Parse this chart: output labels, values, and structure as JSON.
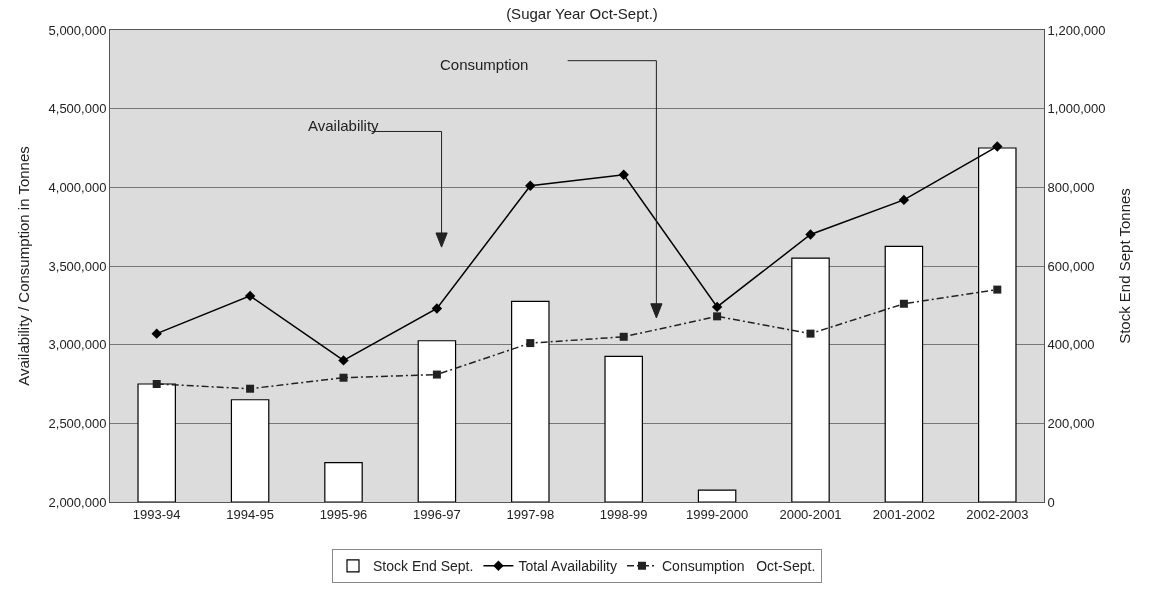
{
  "chart_data": {
    "type": "bar",
    "title": "(Sugar Year Oct-Sept.)",
    "ylabel": "Availability / Consumption in Tonnes",
    "y2label": "Stock End Sept Tonnes",
    "categories": [
      "1993-94",
      "1994-95",
      "1995-96",
      "1996-97",
      "1997-98",
      "1998-99",
      "1999-2000",
      "2000-2001",
      "2001-2002",
      "2002-2003"
    ],
    "series": [
      {
        "name": "Stock End Sept.",
        "axis": "y2",
        "color": "#ffffff",
        "values": [
          300000,
          260000,
          100000,
          410000,
          510000,
          370000,
          30000,
          620000,
          650000,
          900000
        ]
      },
      {
        "name": "Total Availability",
        "type": "line",
        "color": "#000000",
        "marker": "diamond",
        "line_style": "solid",
        "values": [
          3070000,
          3310000,
          2900000,
          3230000,
          4010000,
          4080000,
          3240000,
          3700000,
          3920000,
          4260000
        ]
      },
      {
        "name": "Consumption   Oct-Sept.",
        "type": "line",
        "color": "#222222",
        "marker": "square",
        "line_style": "dashed",
        "values": [
          2750000,
          2720000,
          2790000,
          2810000,
          3010000,
          3050000,
          3180000,
          3070000,
          3260000,
          3350000
        ]
      }
    ],
    "ylim": [
      2000000,
      5000000
    ],
    "yticks": [
      {
        "value": 2000000,
        "label": "2,000,000"
      },
      {
        "value": 2500000,
        "label": "2,500,000"
      },
      {
        "value": 3000000,
        "label": "3,000,000"
      },
      {
        "value": 3500000,
        "label": "3,500,000"
      },
      {
        "value": 4000000,
        "label": "4,000,000"
      },
      {
        "value": 4500000,
        "label": "4,500,000"
      },
      {
        "value": 5000000,
        "label": "5,000,000"
      }
    ],
    "y2lim": [
      0,
      1200000
    ],
    "y2ticks": [
      0,
      {
        "value": 200000,
        "label": "200,000"
      },
      {
        "value": 400000,
        "label": "400,000"
      },
      {
        "value": 600000,
        "label": "600,000"
      },
      {
        "value": 800000,
        "label": "800,000"
      },
      {
        "value": 1000000,
        "label": "1,000,000"
      },
      {
        "value": 1200000,
        "label": "1,200,000"
      }
    ],
    "annotations": [
      "Availability",
      "Consumption"
    ],
    "grid": "y",
    "legend": "bottom"
  }
}
